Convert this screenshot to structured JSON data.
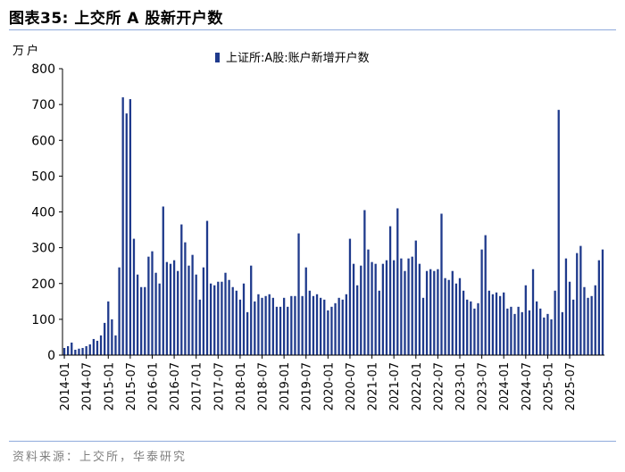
{
  "header": {
    "title": "图表35:  上交所 A 股新开户数"
  },
  "footer": {
    "source": "资料来源：上交所，华泰研究"
  },
  "chart_data": {
    "type": "bar",
    "unit_label": "万户",
    "bar_color": "#1f3a8c",
    "ylim": [
      0,
      800
    ],
    "yticks": [
      0,
      100,
      200,
      300,
      400,
      500,
      600,
      700,
      800
    ],
    "grid": false,
    "legend_position": "top-right",
    "x_tick_labels": [
      "2014-01",
      "2014-07",
      "2015-01",
      "2015-07",
      "2016-01",
      "2016-07",
      "2017-01",
      "2017-07",
      "2018-01",
      "2018-07",
      "2019-01",
      "2019-07",
      "2020-01",
      "2020-07",
      "2021-01",
      "2021-07",
      "2022-01",
      "2022-07",
      "2023-01",
      "2023-07",
      "2024-01",
      "2024-07",
      "2025-01",
      "2025-07"
    ],
    "series": [
      {
        "name": "上证所:A股:账户新增开户数",
        "start": "2014-01",
        "values": [
          20,
          25,
          35,
          15,
          18,
          20,
          25,
          30,
          45,
          40,
          55,
          90,
          150,
          100,
          55,
          245,
          720,
          675,
          715,
          325,
          225,
          190,
          190,
          275,
          290,
          230,
          200,
          415,
          260,
          255,
          265,
          235,
          365,
          315,
          250,
          280,
          225,
          155,
          245,
          375,
          200,
          195,
          205,
          205,
          230,
          210,
          190,
          180,
          155,
          200,
          120,
          250,
          150,
          170,
          160,
          165,
          170,
          160,
          135,
          135,
          160,
          135,
          165,
          165,
          340,
          165,
          245,
          180,
          165,
          170,
          160,
          155,
          125,
          135,
          145,
          160,
          155,
          170,
          325,
          255,
          195,
          250,
          405,
          295,
          260,
          255,
          180,
          255,
          265,
          360,
          265,
          410,
          270,
          235,
          270,
          275,
          320,
          255,
          160,
          235,
          240,
          235,
          240,
          395,
          215,
          210,
          235,
          200,
          215,
          180,
          155,
          150,
          130,
          145,
          295,
          335,
          180,
          170,
          175,
          165,
          175,
          130,
          135,
          115,
          135,
          120,
          195,
          125,
          240,
          150,
          130,
          105,
          115,
          100,
          180,
          685,
          120,
          270,
          205,
          155,
          285,
          305,
          190,
          160,
          165,
          195,
          265,
          295
        ]
      }
    ]
  }
}
